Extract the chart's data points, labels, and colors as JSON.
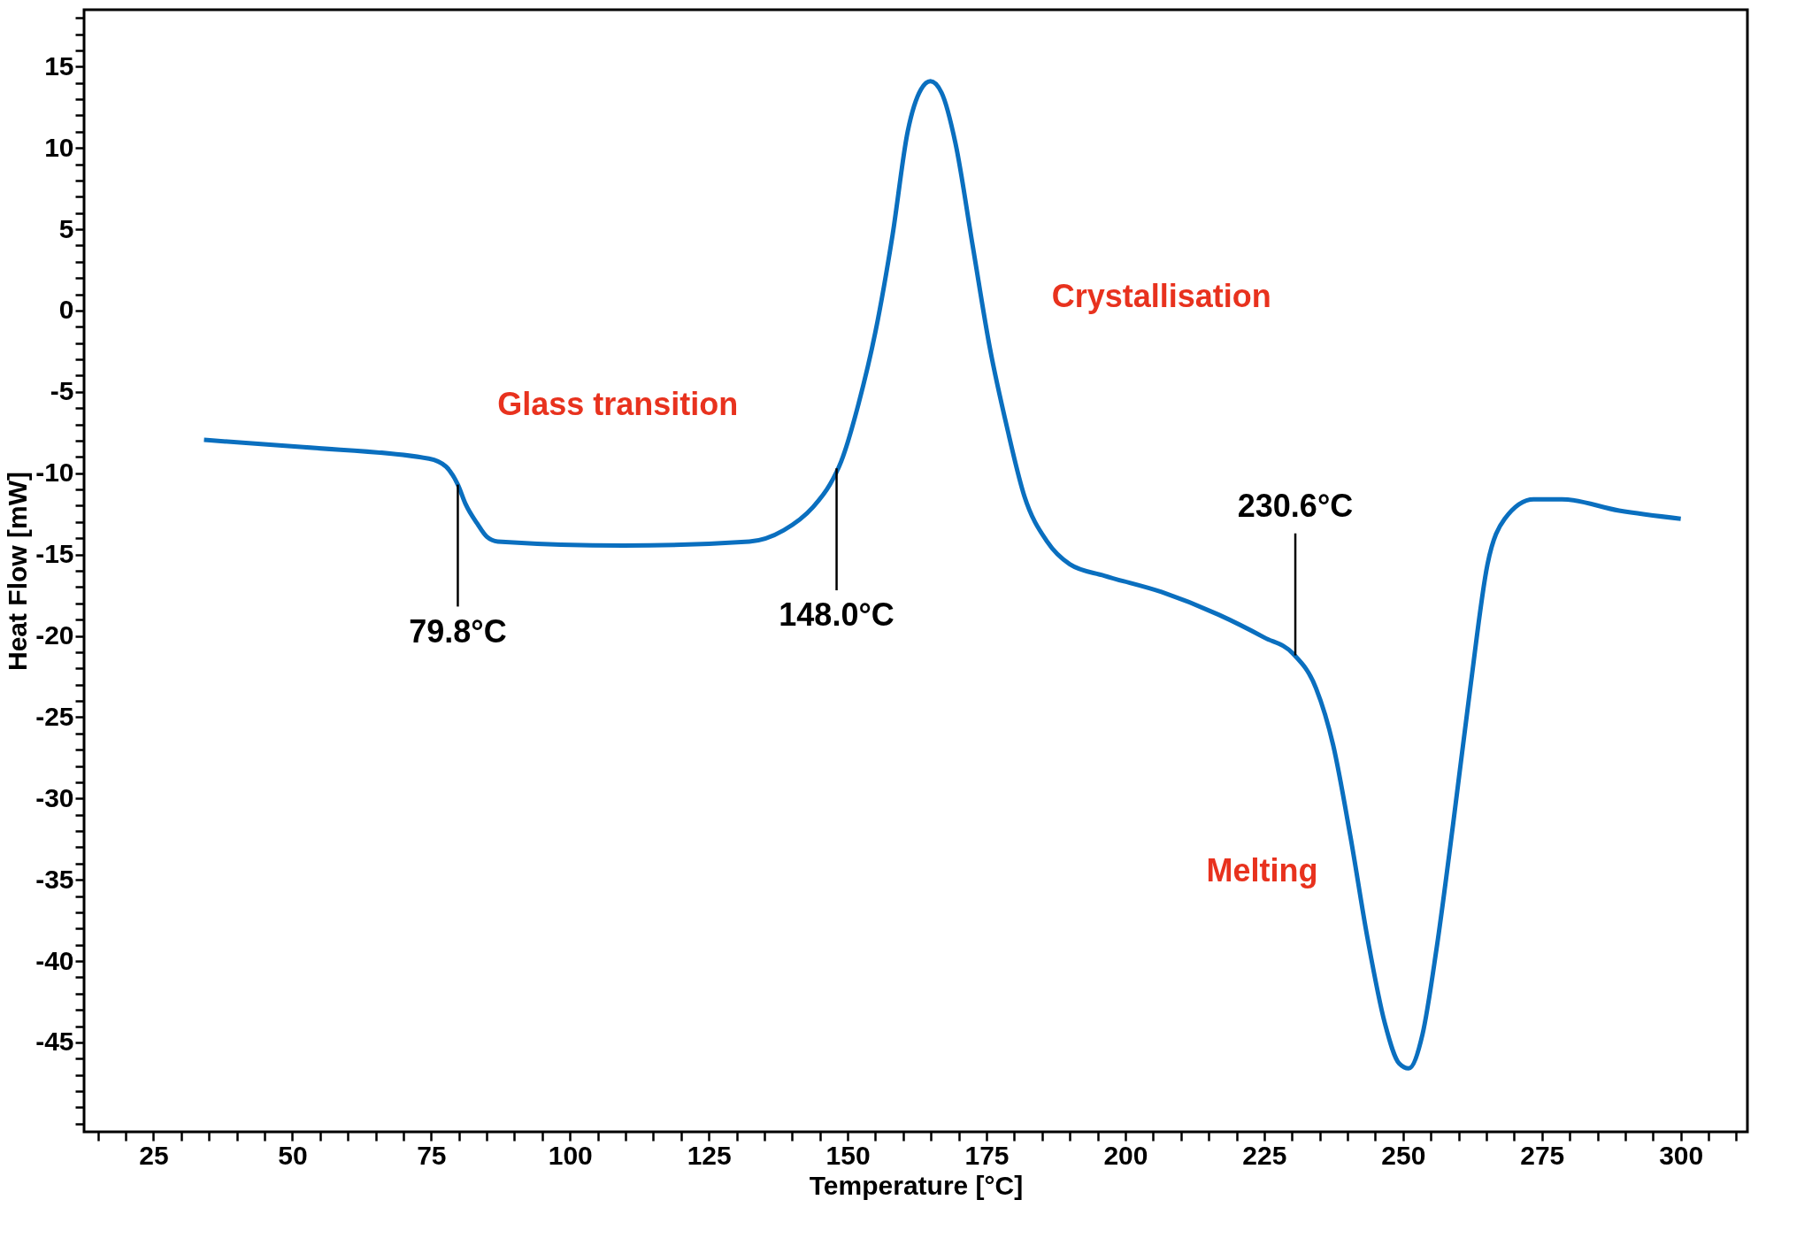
{
  "chart_data": {
    "type": "line",
    "xlabel": "Temperature [°C]",
    "ylabel": "Heat Flow [mW]",
    "x": [
      34.1,
      52,
      74.6,
      77.7,
      79.8,
      81.2,
      83.3,
      85,
      87,
      109.7,
      132.3,
      138.5,
      143.7,
      146.8,
      148.8,
      151.9,
      155,
      158.1,
      160.8,
      163.2,
      164.9,
      166.9,
      169.4,
      172.5,
      175.6,
      178.7,
      181.8,
      185.9,
      190,
      196.2,
      206.5,
      216.8,
      225,
      230.2,
      234.3,
      237.4,
      240.5,
      243.6,
      246.7,
      249.3,
      251,
      253.5,
      256,
      259,
      262.1,
      265.2,
      268.3,
      273.5,
      278.6,
      288.9,
      300
    ],
    "series": [
      {
        "color": "#0a6fbf",
        "values": [
          -7.95,
          -8.4,
          -9.1,
          -9.6,
          -10.7,
          -11.9,
          -13.1,
          -13.9,
          -14.2,
          -14.45,
          -14.2,
          -13.5,
          -12.1,
          -10.7,
          -9.3,
          -5.8,
          -1.3,
          4.7,
          11,
          13.6,
          14.1,
          13.4,
          10.3,
          4,
          -2.3,
          -7.2,
          -11.4,
          -14.2,
          -15.6,
          -16.3,
          -17.3,
          -18.7,
          -20.1,
          -21.1,
          -23.2,
          -26.7,
          -32.3,
          -38.6,
          -43.8,
          -46.3,
          -46.6,
          -44.5,
          -39.3,
          -31.6,
          -23.2,
          -15.6,
          -12.8,
          -11.6,
          -11.6,
          -12.3,
          -12.8
        ]
      }
    ],
    "xlim": [
      12.5,
      312
    ],
    "ylim": [
      -50.5,
      18.5
    ],
    "xticks": [
      {
        "value": 15,
        "label": null
      },
      {
        "value": 20,
        "label": null
      },
      25,
      {
        "value": 30,
        "label": null
      },
      {
        "value": 35,
        "label": null
      },
      {
        "value": 40,
        "label": null
      },
      {
        "value": 45,
        "label": null
      },
      50,
      {
        "value": 55,
        "label": null
      },
      {
        "value": 60,
        "label": null
      },
      {
        "value": 65,
        "label": null
      },
      {
        "value": 70,
        "label": null
      },
      75,
      {
        "value": 80,
        "label": null
      },
      {
        "value": 85,
        "label": null
      },
      {
        "value": 90,
        "label": null
      },
      {
        "value": 95,
        "label": null
      },
      100,
      {
        "value": 105,
        "label": null
      },
      {
        "value": 110,
        "label": null
      },
      {
        "value": 115,
        "label": null
      },
      {
        "value": 120,
        "label": null
      },
      125,
      {
        "value": 130,
        "label": null
      },
      {
        "value": 135,
        "label": null
      },
      {
        "value": 140,
        "label": null
      },
      {
        "value": 145,
        "label": null
      },
      150,
      {
        "value": 155,
        "label": null
      },
      {
        "value": 160,
        "label": null
      },
      {
        "value": 165,
        "label": null
      },
      {
        "value": 170,
        "label": null
      },
      175,
      {
        "value": 180,
        "label": null
      },
      {
        "value": 185,
        "label": null
      },
      {
        "value": 190,
        "label": null
      },
      {
        "value": 195,
        "label": null
      },
      200,
      {
        "value": 205,
        "label": null
      },
      {
        "value": 210,
        "label": null
      },
      {
        "value": 215,
        "label": null
      },
      {
        "value": 220,
        "label": null
      },
      225,
      {
        "value": 230,
        "label": null
      },
      {
        "value": 235,
        "label": null
      },
      {
        "value": 240,
        "label": null
      },
      {
        "value": 245,
        "label": null
      },
      250,
      {
        "value": 255,
        "label": null
      },
      {
        "value": 260,
        "label": null
      },
      {
        "value": 265,
        "label": null
      },
      {
        "value": 270,
        "label": null
      },
      275,
      {
        "value": 280,
        "label": null
      },
      {
        "value": 285,
        "label": null
      },
      {
        "value": 290,
        "label": null
      },
      {
        "value": 295,
        "label": null
      },
      300,
      {
        "value": 305,
        "label": null
      },
      {
        "value": 310,
        "label": null
      }
    ],
    "yticks": [
      {
        "value": -50,
        "label": null
      },
      {
        "value": -49,
        "label": null
      },
      {
        "value": -48,
        "label": null
      },
      {
        "value": -47,
        "label": null
      },
      {
        "value": -46,
        "label": null
      },
      -45,
      {
        "value": -44,
        "label": null
      },
      {
        "value": -43,
        "label": null
      },
      {
        "value": -42,
        "label": null
      },
      {
        "value": -41,
        "label": null
      },
      -40,
      {
        "value": -39,
        "label": null
      },
      {
        "value": -38,
        "label": null
      },
      {
        "value": -37,
        "label": null
      },
      {
        "value": -36,
        "label": null
      },
      -35,
      {
        "value": -34,
        "label": null
      },
      {
        "value": -33,
        "label": null
      },
      {
        "value": -32,
        "label": null
      },
      {
        "value": -31,
        "label": null
      },
      -30,
      {
        "value": -29,
        "label": null
      },
      {
        "value": -28,
        "label": null
      },
      {
        "value": -27,
        "label": null
      },
      {
        "value": -26,
        "label": null
      },
      -25,
      {
        "value": -24,
        "label": null
      },
      {
        "value": -23,
        "label": null
      },
      {
        "value": -22,
        "label": null
      },
      {
        "value": -21,
        "label": null
      },
      -20,
      {
        "value": -19,
        "label": null
      },
      {
        "value": -18,
        "label": null
      },
      {
        "value": -17,
        "label": null
      },
      {
        "value": -16,
        "label": null
      },
      -15,
      {
        "value": -14,
        "label": null
      },
      {
        "value": -13,
        "label": null
      },
      {
        "value": -12,
        "label": null
      },
      {
        "value": -11,
        "label": null
      },
      -10,
      {
        "value": -9,
        "label": null
      },
      {
        "value": -8,
        "label": null
      },
      {
        "value": -7,
        "label": null
      },
      {
        "value": -6,
        "label": null
      },
      -5,
      {
        "value": -4,
        "label": null
      },
      {
        "value": -3,
        "label": null
      },
      {
        "value": -2,
        "label": null
      },
      {
        "value": -1,
        "label": null
      },
      0,
      {
        "value": 1,
        "label": null
      },
      {
        "value": 2,
        "label": null
      },
      {
        "value": 3,
        "label": null
      },
      {
        "value": 4,
        "label": null
      },
      5,
      {
        "value": 6,
        "label": null
      },
      {
        "value": 7,
        "label": null
      },
      {
        "value": 8,
        "label": null
      },
      {
        "value": 9,
        "label": null
      },
      10,
      {
        "value": 11,
        "label": null
      },
      {
        "value": 12,
        "label": null
      },
      {
        "value": 13,
        "label": null
      },
      {
        "value": 14,
        "label": null
      },
      15,
      {
        "value": 16,
        "label": null
      },
      {
        "value": 17,
        "label": null
      },
      {
        "value": 18,
        "label": null
      }
    ],
    "annotations": [
      {
        "text": "79.8°C",
        "x": 79.8,
        "y": -10.7
      },
      {
        "text": "148.0°C",
        "x": 148.0,
        "y": -9.7
      },
      {
        "text": "230.6°C",
        "x": 230.6,
        "y": -21.2
      },
      "Glass transition",
      "Crystallisation",
      "Melting"
    ],
    "grid": false,
    "legend": false,
    "marker": "none",
    "line_style": "solid"
  }
}
